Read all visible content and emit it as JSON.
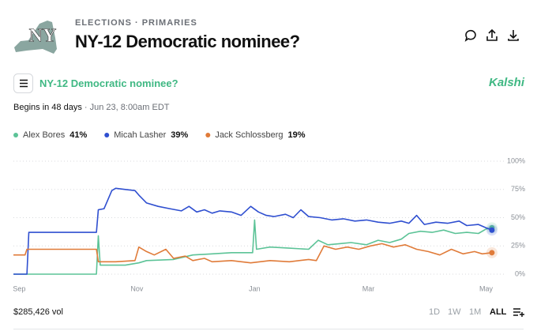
{
  "header": {
    "logo": "NY",
    "category": "ELECTIONS · PRIMARIES",
    "title": "NY-12 Democratic nominee?"
  },
  "market": {
    "name": "NY-12 Democratic nominee?",
    "brand": "Kalshi",
    "begins": "Begins in 48 days",
    "date": "· Jun 23, 8:00am EDT"
  },
  "footer": {
    "volume": "$285,426 vol",
    "ranges": [
      "1D",
      "1W",
      "1M",
      "ALL"
    ]
  },
  "chart_data": {
    "type": "line",
    "xlim": [
      -3,
      252
    ],
    "xticks": [
      {
        "value": 0,
        "label": "Sep"
      },
      {
        "value": 61,
        "label": "Nov"
      },
      {
        "value": 122,
        "label": "Jan"
      },
      {
        "value": 181,
        "label": "Mar"
      },
      {
        "value": 242,
        "label": "May"
      }
    ],
    "ylim": [
      0,
      100
    ],
    "yticks": [
      {
        "value": 0,
        "label": "0%"
      },
      {
        "value": 25,
        "label": "25%"
      },
      {
        "value": 50,
        "label": "50%"
      },
      {
        "value": 75,
        "label": "75%"
      },
      {
        "value": 100,
        "label": "100%"
      }
    ],
    "grid": true,
    "series": [
      {
        "name": "Alex Bores",
        "color": "#5cc397",
        "current": {
          "value": 41,
          "label": "41%"
        },
        "x": [
          -3,
          40,
          41,
          42,
          55,
          62,
          66,
          80,
          90,
          100,
          110,
          121,
          122,
          123,
          130,
          140,
          150,
          155,
          160,
          166,
          172,
          180,
          186,
          192,
          198,
          202,
          208,
          214,
          220,
          226,
          232,
          238,
          242,
          245
        ],
        "values": [
          0,
          0,
          34,
          8,
          8,
          10,
          12,
          13,
          17,
          18,
          19,
          19,
          48,
          22,
          24,
          23,
          22,
          30,
          26,
          27,
          28,
          26,
          30,
          28,
          31,
          36,
          38,
          37,
          39,
          36,
          37,
          36,
          40,
          41
        ]
      },
      {
        "name": "Micah Lasher",
        "color": "#2f4fd0",
        "current": {
          "value": 39,
          "label": "39%"
        },
        "x": [
          -3,
          4,
          5,
          40,
          41,
          44,
          48,
          50,
          55,
          60,
          62,
          66,
          72,
          78,
          84,
          88,
          92,
          96,
          100,
          104,
          110,
          115,
          120,
          124,
          128,
          132,
          138,
          142,
          146,
          150,
          156,
          162,
          168,
          174,
          180,
          186,
          192,
          198,
          202,
          206,
          210,
          216,
          222,
          228,
          232,
          238,
          242,
          245
        ],
        "values": [
          0,
          0,
          37,
          37,
          57,
          58,
          74,
          76,
          75,
          74,
          70,
          63,
          60,
          58,
          56,
          60,
          55,
          57,
          54,
          56,
          55,
          52,
          60,
          55,
          52,
          51,
          53,
          50,
          57,
          51,
          50,
          48,
          49,
          47,
          48,
          46,
          45,
          47,
          45,
          52,
          44,
          46,
          45,
          47,
          43,
          44,
          41,
          39
        ]
      },
      {
        "name": "Jack Schlossberg",
        "color": "#e07b39",
        "current": {
          "value": 19,
          "label": "19%"
        },
        "x": [
          -3,
          3,
          4,
          40,
          41,
          50,
          60,
          62,
          66,
          70,
          76,
          80,
          86,
          90,
          96,
          100,
          110,
          120,
          130,
          140,
          150,
          154,
          158,
          164,
          170,
          176,
          182,
          188,
          194,
          200,
          206,
          212,
          218,
          224,
          230,
          236,
          240,
          245
        ],
        "values": [
          17,
          17,
          22,
          22,
          11,
          11,
          12,
          24,
          20,
          17,
          22,
          14,
          16,
          12,
          14,
          11,
          12,
          10,
          12,
          11,
          13,
          12,
          25,
          22,
          24,
          22,
          25,
          27,
          24,
          26,
          22,
          20,
          17,
          22,
          18,
          20,
          18,
          19
        ]
      }
    ]
  }
}
